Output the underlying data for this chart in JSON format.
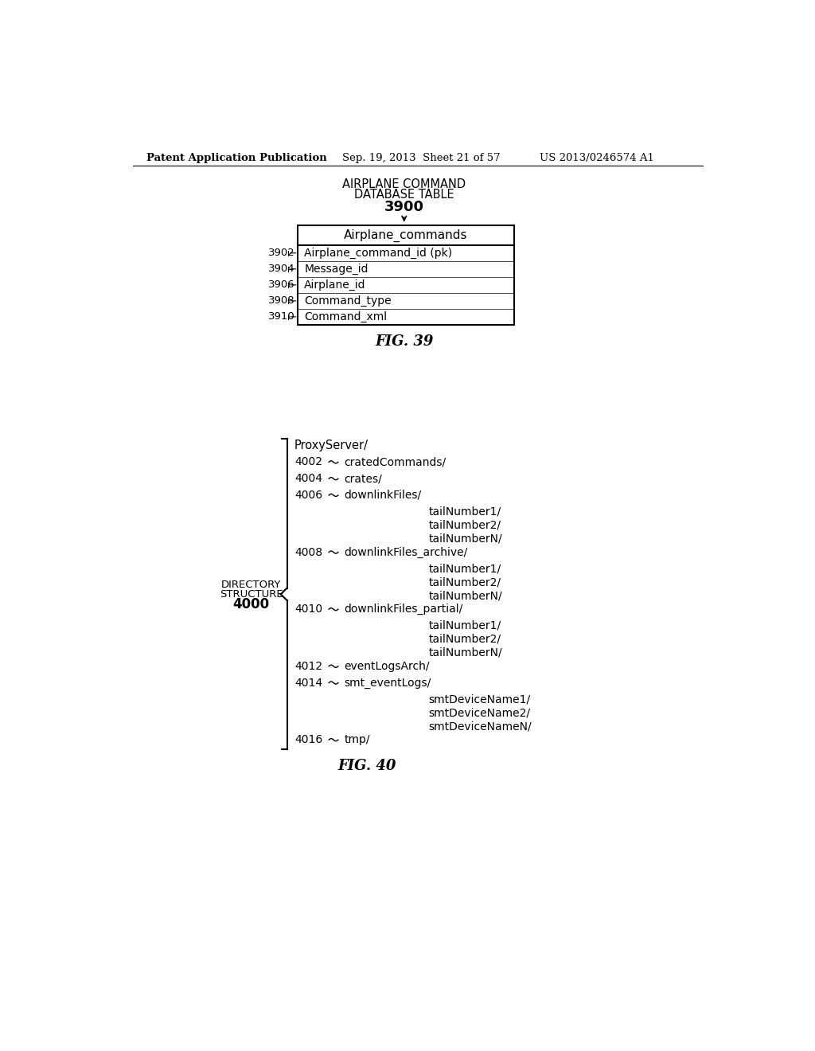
{
  "bg_color": "#ffffff",
  "header_left": "Patent Application Publication",
  "header_mid": "Sep. 19, 2013  Sheet 21 of 57",
  "header_right": "US 2013/0246574 A1",
  "fig39": {
    "title_line1": "AIRPLANE COMMAND",
    "title_line2": "DATABASE TABLE",
    "title_num": "3900",
    "table_header": "Airplane_commands",
    "rows": [
      {
        "label": "3902",
        "text": "Airplane_command_id (pk)"
      },
      {
        "label": "3904",
        "text": "Message_id"
      },
      {
        "label": "3906",
        "text": "Airplane_id"
      },
      {
        "label": "3908",
        "text": "Command_type"
      },
      {
        "label": "3910",
        "text": "Command_xml"
      }
    ],
    "caption": "FIG. 39"
  },
  "fig40": {
    "dir_label_line1": "DIRECTORY",
    "dir_label_line2": "STRUCTURE",
    "dir_label_num": "4000",
    "root": "ProxyServer/",
    "items": [
      {
        "label": "4002",
        "text": "cratedCommands/",
        "children": []
      },
      {
        "label": "4004",
        "text": "crates/",
        "children": []
      },
      {
        "label": "4006",
        "text": "downlinkFiles/",
        "children": [
          "tailNumber1/",
          "tailNumber2/",
          "tailNumberN/"
        ]
      },
      {
        "label": "4008",
        "text": "downlinkFiles_archive/",
        "children": [
          "tailNumber1/",
          "tailNumber2/",
          "tailNumberN/"
        ]
      },
      {
        "label": "4010",
        "text": "downlinkFiles_partial/",
        "children": [
          "tailNumber1/",
          "tailNumber2/",
          "tailNumberN/"
        ]
      },
      {
        "label": "4012",
        "text": "eventLogsArch/",
        "children": []
      },
      {
        "label": "4014",
        "text": "smt_eventLogs/",
        "children": [
          "smtDeviceName1/",
          "smtDeviceName2/",
          "smtDeviceNameN/"
        ]
      },
      {
        "label": "4016",
        "text": "tmp/",
        "children": []
      }
    ],
    "caption": "FIG. 40"
  }
}
